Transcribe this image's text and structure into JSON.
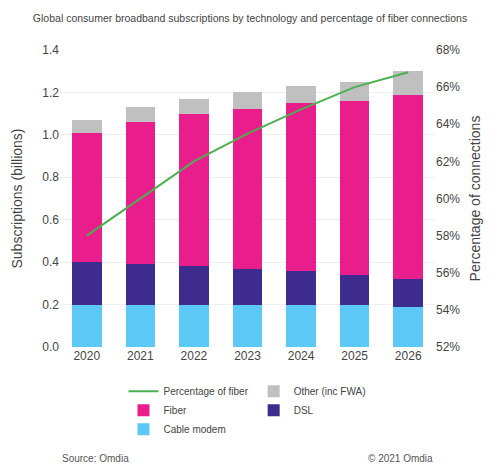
{
  "chart_data": {
    "type": "bar",
    "stacked": true,
    "title": "Global consumer broadband subscriptions by technology and percentage of fiber connections",
    "ylabel": "Subscriptions (billions)",
    "y2label": "Percentage of connections",
    "categories": [
      2020,
      2021,
      2022,
      2023,
      2024,
      2025,
      2026
    ],
    "series": [
      {
        "name": "Cable modem",
        "color": "#5BC8F5",
        "values": [
          0.2,
          0.2,
          0.2,
          0.2,
          0.2,
          0.2,
          0.19
        ]
      },
      {
        "name": "DSL",
        "color": "#3D2B8E",
        "values": [
          0.2,
          0.19,
          0.18,
          0.17,
          0.16,
          0.14,
          0.13
        ]
      },
      {
        "name": "Fiber",
        "color": "#E91E8C",
        "values": [
          0.61,
          0.67,
          0.72,
          0.75,
          0.79,
          0.82,
          0.87
        ]
      },
      {
        "name": "Other (inc FWA)",
        "color": "#C0C0C0",
        "values": [
          0.06,
          0.07,
          0.07,
          0.08,
          0.08,
          0.09,
          0.11
        ]
      },
      {
        "name": "Percentage of fiber",
        "color": "#4CAF50",
        "type": "line",
        "axis": "y2",
        "values": [
          58.0,
          60.0,
          62.0,
          63.5,
          64.8,
          66.0,
          66.8
        ]
      }
    ],
    "ylim": [
      0,
      1.4
    ],
    "yticks": [
      {
        "value": 0,
        "label": "0.0"
      },
      0.2,
      0.4,
      0.6,
      0.8,
      {
        "value": 1,
        "label": "1.0"
      },
      1.2,
      1.4
    ],
    "y2lim": [
      52,
      68
    ],
    "y2ticks": [
      {
        "value": 52,
        "label": "52%"
      },
      {
        "value": 54,
        "label": "54%"
      },
      {
        "value": 56,
        "label": "56%"
      },
      {
        "value": 58,
        "label": "58%"
      },
      {
        "value": 60,
        "label": "60%"
      },
      {
        "value": 62,
        "label": "62%"
      },
      {
        "value": 64,
        "label": "64%"
      },
      {
        "value": 66,
        "label": "66%"
      },
      {
        "value": 68,
        "label": "68%"
      }
    ],
    "grid": true,
    "legend": "bottom",
    "annotations": [
      "Source: Omdia",
      "© 2021 Omdia"
    ]
  }
}
